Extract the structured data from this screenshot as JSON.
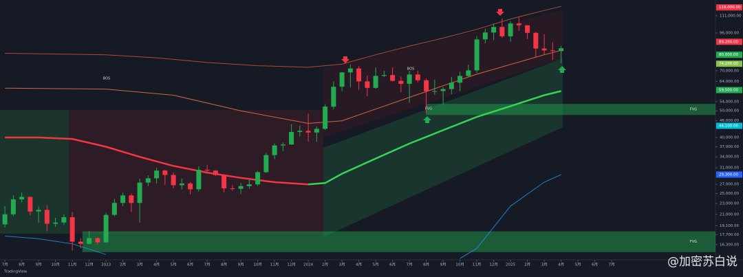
{
  "chart_data": {
    "type": "candlestick",
    "log_scale": true,
    "xlim": [
      -0.29,
      42.16
    ],
    "ylim": [
      14340,
      126600
    ],
    "up_color": "#22ab50",
    "down_color": "#f23645",
    "xticks": [
      {
        "value": 0,
        "label": "7月"
      },
      {
        "value": 1,
        "label": "8月"
      },
      {
        "value": 2,
        "label": "9月"
      },
      {
        "value": 3,
        "label": "10月"
      },
      {
        "value": 4,
        "label": "11月"
      },
      {
        "value": 5,
        "label": "12月"
      },
      {
        "value": 6,
        "label": "2023"
      },
      {
        "value": 7,
        "label": "2月"
      },
      {
        "value": 8,
        "label": "3月"
      },
      {
        "value": 9,
        "label": "4月"
      },
      {
        "value": 10,
        "label": "5月"
      },
      {
        "value": 11,
        "label": "6月"
      },
      {
        "value": 12,
        "label": "7月"
      },
      {
        "value": 13,
        "label": "8月"
      },
      {
        "value": 14,
        "label": "9月"
      },
      {
        "value": 15,
        "label": "10月"
      },
      {
        "value": 16,
        "label": "11月"
      },
      {
        "value": 17,
        "label": "12月"
      },
      {
        "value": 18,
        "label": "2024"
      },
      {
        "value": 19,
        "label": "2月"
      },
      {
        "value": 20,
        "label": "3月"
      },
      {
        "value": 21,
        "label": "4月"
      },
      {
        "value": 22,
        "label": "5月"
      },
      {
        "value": 23,
        "label": "6月"
      },
      {
        "value": 24,
        "label": "7月"
      },
      {
        "value": 25,
        "label": "8月"
      },
      {
        "value": 26,
        "label": "9月"
      },
      {
        "value": 27,
        "label": "10月"
      },
      {
        "value": 28,
        "label": "11月"
      },
      {
        "value": 29,
        "label": "12月"
      },
      {
        "value": 30,
        "label": "2025"
      },
      {
        "value": 31,
        "label": "2月"
      },
      {
        "value": 32,
        "label": "3月"
      },
      {
        "value": 33,
        "label": "4月"
      },
      {
        "value": 34,
        "label": "5月"
      },
      {
        "value": 35,
        "label": "6月"
      },
      {
        "value": 36,
        "label": "7月"
      }
    ],
    "yticks": [
      {
        "value": 111000,
        "label": "111,000.00"
      },
      {
        "value": 96000,
        "label": "96,000.00"
      },
      {
        "value": 70000,
        "label": "70,000.00"
      },
      {
        "value": 64000,
        "label": "64,000.00"
      },
      {
        "value": 54000,
        "label": "54,000.00"
      },
      {
        "value": 50000,
        "label": "50,000.00"
      },
      {
        "value": 46000,
        "label": "46,000.00"
      },
      {
        "value": 40000,
        "label": "40,000.00"
      },
      {
        "value": 37000,
        "label": "37,000.00"
      },
      {
        "value": 34000,
        "label": "34,000.00"
      },
      {
        "value": 31000,
        "label": "31,000.00"
      },
      {
        "value": 27000,
        "label": "27,000.00"
      },
      {
        "value": 25000,
        "label": "25,000.00"
      },
      {
        "value": 23000,
        "label": "23,000.00"
      },
      {
        "value": 21000,
        "label": "21,000.00"
      },
      {
        "value": 19100,
        "label": "19,100.00"
      },
      {
        "value": 17700,
        "label": "17,700.00"
      },
      {
        "value": 16300,
        "label": "16,300.00"
      }
    ],
    "price_tags": [
      {
        "value": 119000,
        "label": "119,000.00",
        "color": "#f23645"
      },
      {
        "value": 89200,
        "label": "89,200.00",
        "color": "#f23645"
      },
      {
        "value": 80000,
        "label": "80,000.00",
        "color": "#22ab50"
      },
      {
        "value": 74200,
        "label": "74,200.00",
        "color": "#8bc34a"
      },
      {
        "value": 59500,
        "label": "59,500.00",
        "color": "#22ab50"
      },
      {
        "value": 44100,
        "label": "44,100.00",
        "color": "#00bcd4"
      },
      {
        "value": 29300,
        "label": "29,300.00",
        "color": "#2962ff"
      }
    ],
    "candles": {
      "x": [
        0,
        0.5,
        1,
        1.5,
        2,
        2.5,
        3,
        3.5,
        4,
        4.5,
        5,
        5.5,
        6,
        6.5,
        7,
        7.5,
        8,
        8.5,
        9,
        9.5,
        10,
        10.5,
        11,
        11.5,
        12,
        12.5,
        13,
        13.5,
        14,
        14.5,
        15,
        15.5,
        16,
        16.5,
        17,
        17.5,
        18,
        18.5,
        19,
        19.5,
        20,
        20.5,
        21,
        21.5,
        22,
        22.5,
        23,
        23.5,
        24,
        24.5,
        25,
        25.5,
        26,
        26.5,
        27,
        27.5,
        28,
        28.5,
        29,
        29.5,
        30,
        30.5,
        31,
        31.5,
        32,
        32.5,
        33
      ],
      "open": [
        19300,
        21000,
        23800,
        24300,
        21500,
        21800,
        19400,
        19600,
        20500,
        16700,
        16400,
        17200,
        16600,
        20900,
        23100,
        24600,
        23100,
        27400,
        28400,
        30300,
        29200,
        26800,
        27200,
        25900,
        30500,
        30300,
        29200,
        26100,
        26000,
        26600,
        27000,
        29900,
        34500,
        37400,
        37700,
        41900,
        42300,
        41700,
        43000,
        51800,
        61200,
        69000,
        71300,
        64000,
        60600,
        67000,
        67500,
        64300,
        62700,
        67800,
        64600,
        59000,
        59000,
        60000,
        63300,
        67000,
        70200,
        91000,
        96400,
        101000,
        93400,
        104000,
        102400,
        96100,
        84300,
        83000,
        82500
      ],
      "high": [
        22500,
        24600,
        25200,
        24400,
        22400,
        22700,
        20400,
        21000,
        21400,
        17200,
        18300,
        17300,
        21300,
        23900,
        25200,
        25000,
        28300,
        29100,
        31000,
        30500,
        29800,
        28400,
        27500,
        31400,
        31800,
        30400,
        29400,
        26800,
        27300,
        28000,
        30200,
        35200,
        38000,
        38400,
        44700,
        44200,
        48900,
        43900,
        52800,
        64000,
        69200,
        73800,
        72700,
        67200,
        71900,
        70000,
        71900,
        66600,
        69900,
        70000,
        65500,
        65000,
        61000,
        66500,
        69400,
        73600,
        93500,
        99600,
        104000,
        108300,
        106000,
        109600,
        102500,
        97000,
        95000,
        88700,
        86000
      ],
      "low": [
        18800,
        20700,
        23200,
        20800,
        19600,
        18200,
        18900,
        19200,
        15500,
        15800,
        16300,
        16300,
        16500,
        20700,
        22500,
        21400,
        19600,
        26600,
        27200,
        26900,
        26100,
        25900,
        24800,
        25400,
        29500,
        28900,
        25200,
        25600,
        24900,
        26000,
        26600,
        29700,
        33400,
        35700,
        37600,
        40300,
        38600,
        38600,
        42600,
        50600,
        59000,
        60800,
        59700,
        56500,
        60200,
        66300,
        64000,
        58500,
        53500,
        63500,
        49000,
        57200,
        52600,
        57500,
        59000,
        66600,
        68800,
        88000,
        90500,
        92200,
        89300,
        97800,
        91200,
        78200,
        80000,
        76600,
        74600
      ],
      "close": [
        21000,
        23800,
        24300,
        21500,
        21800,
        19400,
        19600,
        20500,
        16700,
        16400,
        17200,
        16600,
        20900,
        23100,
        24600,
        23100,
        27400,
        28400,
        30300,
        29200,
        26800,
        27200,
        25900,
        30500,
        30300,
        29200,
        26100,
        26000,
        26600,
        27000,
        29900,
        34500,
        37400,
        37700,
        41900,
        42300,
        41700,
        43000,
        51800,
        61200,
        69000,
        71300,
        64000,
        60600,
        67000,
        67500,
        64300,
        62700,
        67800,
        64600,
        59000,
        59000,
        60000,
        63300,
        67000,
        70200,
        91000,
        96400,
        101000,
        93400,
        104000,
        102400,
        96100,
        84300,
        83000,
        82500,
        84500
      ]
    },
    "lines": [
      {
        "color": "#f23645",
        "x": [
          0,
          2,
          4,
          6,
          8,
          10,
          12,
          14,
          16,
          18
        ],
        "values": [
          40000,
          40000,
          39500,
          37000,
          34000,
          31500,
          29800,
          28500,
          27500,
          27000
        ]
      },
      {
        "color": "#39d353",
        "x": [
          18,
          19,
          20,
          22,
          24,
          26,
          28,
          30,
          32,
          33
        ],
        "values": [
          27000,
          27300,
          29500,
          33500,
          38000,
          42500,
          47500,
          52000,
          57000,
          59000
        ]
      },
      {
        "color": "#e0523f",
        "x": [
          0,
          3,
          6,
          9,
          12,
          15,
          18,
          20,
          22,
          24,
          26,
          28,
          30,
          32,
          33
        ],
        "values": [
          81000,
          80500,
          80000,
          78000,
          75000,
          73000,
          72000,
          74000,
          80000,
          86000,
          92000,
          99000,
          108000,
          116000,
          120000
        ]
      },
      {
        "color": "#ff7a45",
        "x": [
          0,
          6,
          10,
          14,
          18,
          20,
          24,
          28,
          32,
          33
        ],
        "values": [
          60500,
          60000,
          57000,
          50000,
          45000,
          46000,
          56000,
          68000,
          80000,
          83000
        ]
      },
      {
        "color": "#2196f3",
        "x": [
          0,
          2,
          4,
          6,
          7,
          27,
          28,
          30,
          32,
          33
        ],
        "values": [
          17500,
          17100,
          16400,
          15000,
          null,
          14500,
          15800,
          22500,
          27500,
          29300
        ]
      }
    ],
    "zones": [
      {
        "x_start": 25,
        "low": 48300,
        "high": 53000,
        "label": "FVG"
      },
      {
        "x_start": 4.6,
        "low": 15300,
        "high": 18200,
        "label": "FVG"
      }
    ],
    "annotations": [
      "BOS",
      "BOS",
      "FVG"
    ],
    "source": "TradingView",
    "watermark": "@加密苏白说"
  }
}
